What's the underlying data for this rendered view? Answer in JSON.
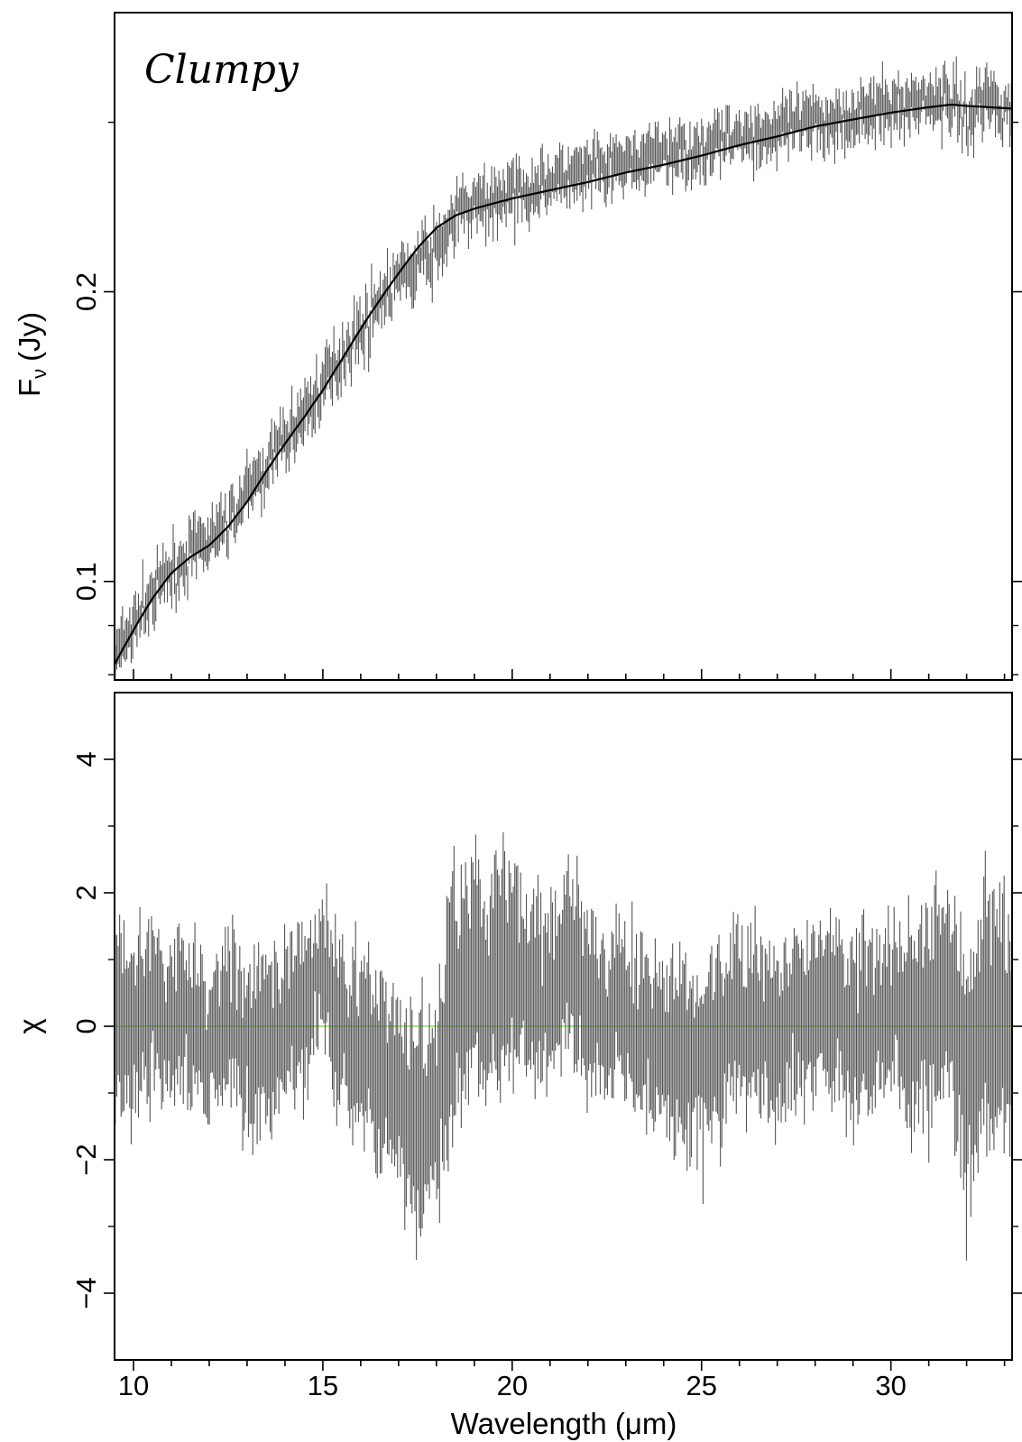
{
  "chart_data": [
    {
      "type": "line",
      "panel": "top",
      "annotation": "Clumpy",
      "xlabel": "",
      "ylabel_main": "F",
      "ylabel_sub": "ν",
      "ylabel_unit": "(Jy)",
      "ylog": true,
      "xlim": [
        9.5,
        33.2
      ],
      "ylim": [
        0.079,
        0.39
      ],
      "y_ticks": [
        0.1,
        0.2
      ],
      "y_tick_labels": [
        "0.1",
        "0.2"
      ],
      "y_minor_ticks": [
        0.09,
        0.3
      ],
      "series": [
        {
          "kind": "data-with-errorbars",
          "color": "#555555",
          "x": [
            9.5,
            10.0,
            10.5,
            11.0,
            11.5,
            12.0,
            12.5,
            13.0,
            13.5,
            14.0,
            14.5,
            15.0,
            15.5,
            16.0,
            16.5,
            17.0,
            17.5,
            18.0,
            18.5,
            19.0,
            19.5,
            20.0,
            20.5,
            21.0,
            21.5,
            22.0,
            22.5,
            23.0,
            23.5,
            24.0,
            24.5,
            25.0,
            25.5,
            26.0,
            26.5,
            27.0,
            27.5,
            28.0,
            28.5,
            29.0,
            29.5,
            30.0,
            30.5,
            31.0,
            31.5,
            32.0,
            32.5,
            33.0
          ],
          "y": [
            0.083,
            0.09,
            0.097,
            0.102,
            0.107,
            0.11,
            0.115,
            0.123,
            0.132,
            0.14,
            0.15,
            0.16,
            0.172,
            0.183,
            0.196,
            0.206,
            0.214,
            0.222,
            0.24,
            0.245,
            0.25,
            0.254,
            0.257,
            0.26,
            0.263,
            0.266,
            0.268,
            0.272,
            0.275,
            0.278,
            0.28,
            0.283,
            0.287,
            0.29,
            0.292,
            0.294,
            0.297,
            0.3,
            0.303,
            0.306,
            0.309,
            0.312,
            0.314,
            0.316,
            0.32,
            0.302,
            0.322,
            0.31
          ]
        },
        {
          "kind": "model",
          "color": "#000000",
          "x": [
            9.5,
            10.0,
            10.5,
            11.0,
            11.5,
            12.0,
            12.5,
            13.0,
            13.5,
            14.0,
            14.5,
            15.0,
            15.5,
            16.0,
            16.5,
            17.0,
            17.5,
            18.0,
            18.5,
            19.0,
            19.5,
            20.0,
            21.0,
            22.0,
            23.0,
            24.0,
            25.0,
            26.0,
            27.0,
            28.0,
            29.0,
            30.0,
            31.0,
            31.6,
            32.0,
            33.2
          ],
          "y": [
            0.082,
            0.089,
            0.096,
            0.102,
            0.106,
            0.109,
            0.114,
            0.121,
            0.13,
            0.139,
            0.148,
            0.158,
            0.17,
            0.183,
            0.196,
            0.209,
            0.222,
            0.233,
            0.24,
            0.244,
            0.247,
            0.25,
            0.255,
            0.26,
            0.266,
            0.271,
            0.277,
            0.284,
            0.29,
            0.297,
            0.302,
            0.307,
            0.311,
            0.313,
            0.312,
            0.31
          ]
        }
      ]
    },
    {
      "type": "line",
      "panel": "bottom",
      "xlabel": "Wavelength (μm)",
      "ylabel": "χ",
      "xlim": [
        9.5,
        33.2
      ],
      "ylim": [
        -5.0,
        5.0
      ],
      "x_ticks": [
        10,
        15,
        20,
        25,
        30
      ],
      "x_tick_labels": [
        "10",
        "15",
        "20",
        "25",
        "30"
      ],
      "y_ticks": [
        -4,
        -2,
        0,
        2,
        4
      ],
      "y_tick_labels": [
        "−4",
        "−2",
        "0",
        "2",
        "4"
      ],
      "zero_line": {
        "y": 0,
        "color": "#8fdc5a"
      },
      "series": [
        {
          "kind": "residuals-with-errorbars",
          "color": "#555555",
          "x": [
            9.5,
            10.0,
            10.5,
            11.0,
            11.5,
            12.0,
            12.5,
            13.0,
            13.5,
            14.0,
            14.5,
            15.0,
            15.5,
            16.0,
            16.5,
            17.0,
            17.5,
            18.0,
            18.5,
            19.0,
            19.5,
            20.0,
            20.5,
            21.0,
            21.5,
            22.0,
            22.5,
            23.0,
            23.5,
            24.0,
            24.5,
            25.0,
            25.5,
            26.0,
            26.5,
            27.0,
            27.5,
            28.0,
            28.5,
            29.0,
            29.5,
            30.0,
            30.5,
            31.0,
            31.5,
            32.0,
            32.5,
            33.0
          ],
          "y": [
            0.3,
            -0.2,
            0.4,
            0.0,
            0.3,
            -0.3,
            0.2,
            -0.4,
            -0.2,
            0.0,
            0.3,
            0.9,
            -0.1,
            -0.3,
            -0.6,
            -1.0,
            -1.5,
            -1.2,
            0.3,
            0.8,
            0.6,
            0.9,
            0.6,
            0.5,
            1.1,
            0.5,
            0.2,
            0.1,
            -0.1,
            -0.3,
            -0.4,
            -0.6,
            -0.2,
            0.1,
            -0.1,
            -0.2,
            0.2,
            0.3,
            0.2,
            -0.1,
            0.2,
            0.3,
            0.1,
            0.0,
            0.6,
            -1.0,
            0.3,
            0.0
          ],
          "err": [
            1.2,
            1.0,
            1.0,
            0.9,
            0.9,
            0.9,
            0.9,
            1.0,
            1.0,
            0.9,
            0.9,
            0.9,
            1.1,
            1.1,
            1.2,
            1.2,
            1.4,
            1.4,
            1.5,
            1.3,
            1.2,
            1.2,
            1.1,
            1.1,
            1.2,
            1.1,
            1.0,
            1.0,
            1.0,
            1.0,
            1.0,
            1.1,
            1.1,
            1.0,
            1.0,
            1.0,
            1.0,
            1.0,
            1.0,
            1.0,
            1.0,
            1.0,
            1.2,
            1.2,
            1.3,
            1.6,
            1.4,
            1.5
          ]
        }
      ]
    }
  ]
}
